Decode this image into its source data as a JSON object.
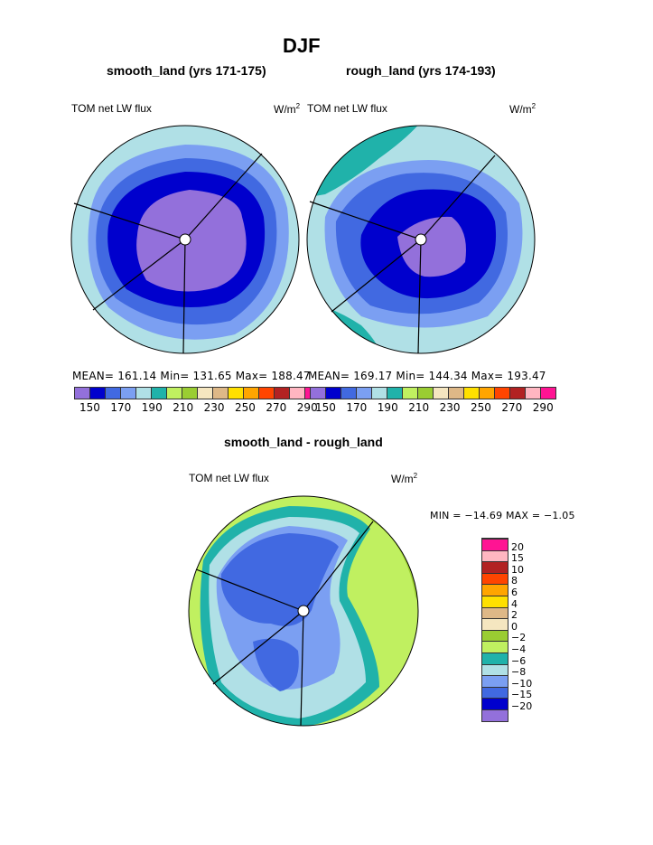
{
  "title": "DJF",
  "panels": [
    {
      "subtitle": "smooth_land (yrs 171-175)",
      "left_label": "TOM net LW flux",
      "units": "W/m",
      "units_sup": "2",
      "stats": "MEAN= 161.14  Min= 131.65  Max= 188.47"
    },
    {
      "subtitle": "rough_land (yrs 174-193)",
      "left_label": "TOM net LW flux",
      "units": "W/m",
      "units_sup": "2",
      "stats": "MEAN= 169.17  Min= 144.34  Max= 193.47"
    }
  ],
  "diff_panel": {
    "subtitle": "smooth_land - rough_land",
    "left_label": "TOM net LW flux",
    "units": "W/m",
    "units_sup": "2",
    "stats": "MIN = −14.69  MAX =  −1.05"
  },
  "colorbar": {
    "colors": [
      "#9370DB",
      "#0000CD",
      "#4169E1",
      "#7B9FF2",
      "#B0E0E6",
      "#20B2AA",
      "#C0F060",
      "#9ACD32",
      "#F5E6C0",
      "#DEB887",
      "#FFE000",
      "#FFA500",
      "#FF4500",
      "#B22222",
      "#FFB6C1",
      "#FF1493"
    ],
    "labels": [
      "150",
      "170",
      "190",
      "210",
      "230",
      "250",
      "270",
      "290"
    ]
  },
  "diff_colorbar": {
    "labels": [
      "−20",
      "−15",
      "−10",
      "−8",
      "−6",
      "−4",
      "−2",
      "0",
      "2",
      "4",
      "6",
      "8",
      "10",
      "15",
      "20"
    ]
  }
}
